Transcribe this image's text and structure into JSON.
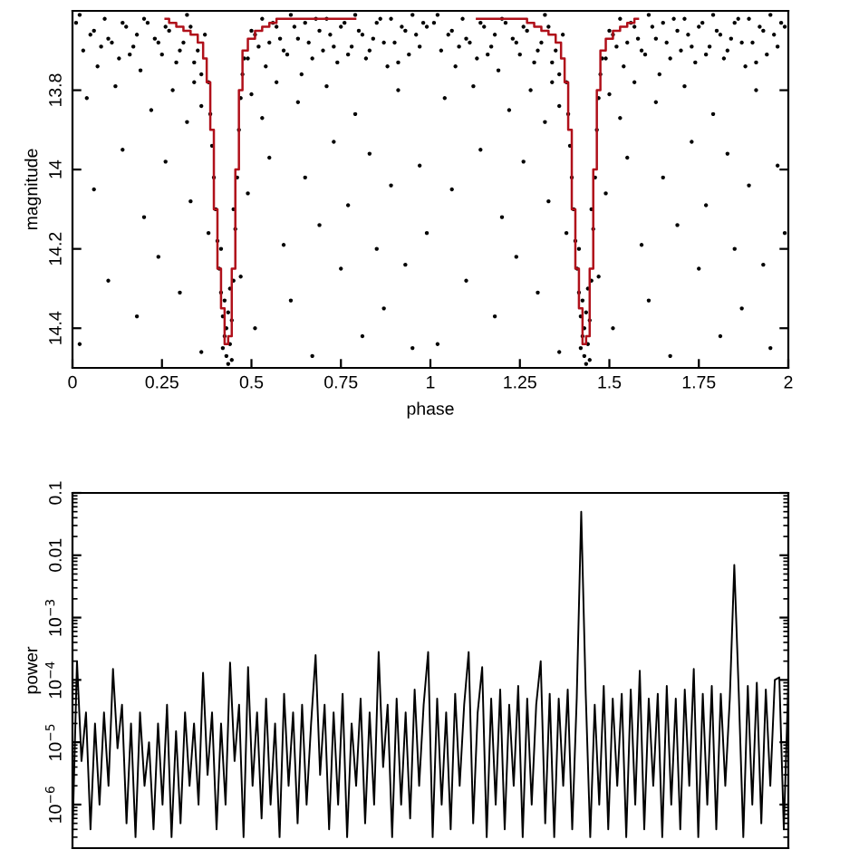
{
  "chart_data": [
    {
      "type": "scatter",
      "xlabel": "phase",
      "ylabel": "magnitude",
      "xlim": [
        0,
        2
      ],
      "ylim": [
        14.5,
        13.6
      ],
      "xticks": [
        0,
        0.25,
        0.5,
        0.75,
        1,
        1.25,
        1.5,
        1.75,
        2
      ],
      "yticks": [
        13.8,
        14,
        14.2,
        14.4
      ],
      "series": [
        {
          "type": "scatter",
          "color": "#000000",
          "marker": "circle",
          "x": [
            0.01,
            0.03,
            0.05,
            0.07,
            0.09,
            0.11,
            0.13,
            0.15,
            0.17,
            0.19,
            0.21,
            0.23,
            0.25,
            0.27,
            0.29,
            0.31,
            0.33,
            0.35,
            0.36,
            0.37,
            0.49,
            0.5,
            0.52,
            0.54,
            0.56,
            0.58,
            0.6,
            0.62,
            0.64,
            0.66,
            0.68,
            0.7,
            0.72,
            0.74,
            0.76,
            0.78,
            0.8,
            0.82,
            0.84,
            0.86,
            0.88,
            0.9,
            0.92,
            0.94,
            0.96,
            0.98,
            0.04,
            0.12,
            0.22,
            0.28,
            0.32,
            0.34,
            0.36,
            0.5,
            0.53,
            0.57,
            0.63,
            0.71,
            0.79,
            0.91,
            0.02,
            0.06,
            0.1,
            0.14,
            0.18,
            0.2,
            0.24,
            0.26,
            0.3,
            0.33,
            0.36,
            0.38,
            0.47,
            0.49,
            0.51,
            0.55,
            0.59,
            0.61,
            0.65,
            0.67,
            0.69,
            0.73,
            0.75,
            0.77,
            0.81,
            0.83,
            0.85,
            0.87,
            0.89,
            0.93,
            0.95,
            0.97,
            0.99,
            0.38,
            0.385,
            0.39,
            0.395,
            0.4,
            0.405,
            0.41,
            0.415,
            0.42,
            0.425,
            0.43,
            0.435,
            0.44,
            0.445,
            0.45,
            0.455,
            0.46,
            0.465,
            0.47,
            0.475,
            0.48,
            0.43,
            0.425,
            0.435,
            0.42,
            0.44,
            0.415,
            0.45,
            0.445,
            1.01,
            1.03,
            1.05,
            1.07,
            1.09,
            1.11,
            1.13,
            1.15,
            1.17,
            1.19,
            1.21,
            1.23,
            1.25,
            1.27,
            1.29,
            1.31,
            1.33,
            1.35,
            1.36,
            1.37,
            1.49,
            1.5,
            1.52,
            1.54,
            1.56,
            1.58,
            1.6,
            1.62,
            1.64,
            1.66,
            1.68,
            1.7,
            1.72,
            1.74,
            1.76,
            1.78,
            1.8,
            1.82,
            1.84,
            1.86,
            1.88,
            1.9,
            1.92,
            1.94,
            1.96,
            1.98,
            1.04,
            1.12,
            1.22,
            1.28,
            1.32,
            1.34,
            1.36,
            1.5,
            1.53,
            1.57,
            1.63,
            1.71,
            1.79,
            1.91,
            1.02,
            1.06,
            1.1,
            1.14,
            1.18,
            1.2,
            1.24,
            1.26,
            1.3,
            1.33,
            1.36,
            1.38,
            1.47,
            1.49,
            1.51,
            1.55,
            1.59,
            1.61,
            1.65,
            1.67,
            1.69,
            1.73,
            1.75,
            1.77,
            1.81,
            1.83,
            1.85,
            1.87,
            1.89,
            1.93,
            1.95,
            1.97,
            1.99,
            1.38,
            1.385,
            1.39,
            1.395,
            1.4,
            1.405,
            1.41,
            1.415,
            1.42,
            1.425,
            1.43,
            1.435,
            1.44,
            1.445,
            1.45,
            1.455,
            1.46,
            1.465,
            1.47,
            1.475,
            1.48,
            1.43,
            1.425,
            1.435,
            1.42,
            1.44,
            1.415,
            1.45,
            1.445,
            0.02,
            0.06,
            0.08,
            0.1,
            0.14,
            0.16,
            0.18,
            0.2,
            0.24,
            0.26,
            0.3,
            0.32,
            0.34,
            0.51,
            0.53,
            0.55,
            0.57,
            0.59,
            0.61,
            0.63,
            0.65,
            0.67,
            0.69,
            0.71,
            0.73,
            0.75,
            0.77,
            0.79,
            0.81,
            0.83,
            0.85,
            0.87,
            0.89,
            0.91,
            0.93,
            0.95,
            0.97,
            0.99,
            1.02,
            1.06,
            1.08,
            1.1,
            1.14,
            1.16,
            1.18,
            1.2,
            1.24,
            1.26,
            1.3,
            1.32,
            1.34,
            1.51,
            1.53,
            1.55,
            1.57,
            1.59,
            1.61,
            1.63,
            1.65,
            1.67,
            1.69,
            1.71,
            1.73,
            1.75,
            1.77,
            1.79,
            1.81,
            1.83,
            1.85,
            1.87,
            1.89,
            1.91,
            1.93,
            1.95,
            1.97,
            1.99
          ],
          "values": [
            13.63,
            13.7,
            13.66,
            13.74,
            13.62,
            13.68,
            13.72,
            13.64,
            13.69,
            13.75,
            13.63,
            13.67,
            13.71,
            13.65,
            13.73,
            13.68,
            13.64,
            13.7,
            13.76,
            13.66,
            13.72,
            13.65,
            13.69,
            13.74,
            13.63,
            13.67,
            13.71,
            13.64,
            13.76,
            13.68,
            13.62,
            13.7,
            13.66,
            13.73,
            13.63,
            13.69,
            13.65,
            13.72,
            13.67,
            13.62,
            13.74,
            13.68,
            13.64,
            13.71,
            13.66,
            13.63,
            13.82,
            13.79,
            13.85,
            13.8,
            13.88,
            13.78,
            13.84,
            13.81,
            13.87,
            13.78,
            13.83,
            13.79,
            13.86,
            13.8,
            14.44,
            14.05,
            14.28,
            13.95,
            14.37,
            14.12,
            14.22,
            13.98,
            14.31,
            14.08,
            14.46,
            14.16,
            14.27,
            14.06,
            14.4,
            13.97,
            14.19,
            14.33,
            14.02,
            14.47,
            14.14,
            13.93,
            14.25,
            14.09,
            14.42,
            13.96,
            14.2,
            14.35,
            14.04,
            14.24,
            14.45,
            13.99,
            14.16,
            13.78,
            13.86,
            13.94,
            14.02,
            14.1,
            14.18,
            14.25,
            14.31,
            14.37,
            14.42,
            14.47,
            14.49,
            14.44,
            14.38,
            14.28,
            14.15,
            14.02,
            13.9,
            13.82,
            13.76,
            13.72,
            14.4,
            14.33,
            14.36,
            14.45,
            14.3,
            14.2,
            14.1,
            14.48,
            13.63,
            13.7,
            13.66,
            13.74,
            13.62,
            13.68,
            13.72,
            13.64,
            13.69,
            13.75,
            13.63,
            13.67,
            13.71,
            13.65,
            13.73,
            13.68,
            13.64,
            13.7,
            13.76,
            13.66,
            13.72,
            13.65,
            13.69,
            13.74,
            13.63,
            13.67,
            13.71,
            13.64,
            13.76,
            13.68,
            13.62,
            13.7,
            13.66,
            13.73,
            13.63,
            13.69,
            13.65,
            13.72,
            13.67,
            13.62,
            13.74,
            13.68,
            13.64,
            13.71,
            13.66,
            13.63,
            13.82,
            13.79,
            13.85,
            13.8,
            13.88,
            13.78,
            13.84,
            13.81,
            13.87,
            13.78,
            13.83,
            13.79,
            13.86,
            13.8,
            14.44,
            14.05,
            14.28,
            13.95,
            14.37,
            14.12,
            14.22,
            13.98,
            14.31,
            14.08,
            14.46,
            14.16,
            14.27,
            14.06,
            14.4,
            13.97,
            14.19,
            14.33,
            14.02,
            14.47,
            14.14,
            13.93,
            14.25,
            14.09,
            14.42,
            13.96,
            14.2,
            14.35,
            14.04,
            14.24,
            14.45,
            13.99,
            14.16,
            13.78,
            13.86,
            13.94,
            14.02,
            14.1,
            14.18,
            14.25,
            14.31,
            14.37,
            14.42,
            14.47,
            14.49,
            14.44,
            14.38,
            14.28,
            14.15,
            14.02,
            13.9,
            13.82,
            13.76,
            13.72,
            14.4,
            14.33,
            14.36,
            14.45,
            14.3,
            14.2,
            14.1,
            14.48,
            13.61,
            13.65,
            13.69,
            13.67,
            13.63,
            13.71,
            13.66,
            13.62,
            13.68,
            13.64,
            13.7,
            13.61,
            13.73,
            13.66,
            13.62,
            13.68,
            13.64,
            13.7,
            13.61,
            13.67,
            13.63,
            13.72,
            13.65,
            13.62,
            13.69,
            13.64,
            13.71,
            13.61,
            13.66,
            13.7,
            13.63,
            13.68,
            13.62,
            13.73,
            13.65,
            13.61,
            13.69,
            13.64,
            13.61,
            13.65,
            13.69,
            13.67,
            13.63,
            13.71,
            13.66,
            13.62,
            13.68,
            13.64,
            13.7,
            13.61,
            13.73,
            13.66,
            13.62,
            13.68,
            13.64,
            13.7,
            13.61,
            13.67,
            13.63,
            13.72,
            13.65,
            13.62,
            13.69,
            13.64,
            13.71,
            13.61,
            13.66,
            13.7,
            13.63,
            13.68,
            13.62,
            13.73,
            13.65,
            13.61,
            13.69,
            13.64
          ]
        },
        {
          "type": "step",
          "color": "#b0101a",
          "x": [
            0.26,
            0.28,
            0.3,
            0.32,
            0.34,
            0.36,
            0.37,
            0.38,
            0.39,
            0.4,
            0.41,
            0.42,
            0.43,
            0.44,
            0.45,
            0.46,
            0.47,
            0.48,
            0.5,
            0.52,
            0.54,
            0.56,
            0.58,
            1.0,
            1.26,
            1.28,
            1.3,
            1.32,
            1.34,
            1.36,
            1.37,
            1.38,
            1.39,
            1.4,
            1.41,
            1.42,
            1.43,
            1.44,
            1.45,
            1.46,
            1.47,
            1.48,
            1.5,
            1.52,
            1.54,
            1.56,
            1.58
          ],
          "values": [
            13.62,
            13.63,
            13.64,
            13.65,
            13.66,
            13.68,
            13.72,
            13.78,
            13.9,
            14.1,
            14.25,
            14.35,
            14.44,
            14.42,
            14.25,
            14.0,
            13.8,
            13.7,
            13.67,
            13.65,
            13.64,
            13.63,
            13.62,
            null,
            13.62,
            13.63,
            13.64,
            13.65,
            13.66,
            13.68,
            13.72,
            13.78,
            13.9,
            14.1,
            14.25,
            14.35,
            14.44,
            14.42,
            14.25,
            14.0,
            13.8,
            13.7,
            13.67,
            13.65,
            13.64,
            13.63,
            13.62
          ]
        }
      ]
    },
    {
      "type": "line",
      "ylabel": "power",
      "log": "y",
      "ylim": [
        2e-07,
        0.1
      ],
      "tick_labels": "y",
      "yticks": [
        {
          "value": 1e-06,
          "label": "10$^{−6}$"
        },
        {
          "value": 1e-05,
          "label": "10$^{−5}$"
        },
        {
          "value": 0.0001,
          "label": "10$^{−4}$"
        },
        {
          "value": 0.001,
          "label": "10$^{−3}$"
        },
        0.01,
        0.1
      ],
      "categories": [
        null,
        null,
        null,
        null,
        null,
        null,
        null,
        null,
        null,
        null,
        null,
        null,
        null,
        null,
        null,
        null,
        null,
        null,
        null,
        null,
        null,
        null,
        null,
        null,
        null,
        null,
        null,
        null,
        null,
        null,
        null,
        null,
        null,
        null,
        null,
        null,
        null,
        null,
        null,
        null,
        null,
        null,
        null,
        null,
        null,
        null,
        null,
        null,
        null,
        null,
        null,
        null,
        null,
        null,
        null,
        null,
        null,
        null,
        null,
        null,
        null,
        null,
        null,
        null,
        null,
        null,
        null,
        null,
        null,
        null,
        null,
        null,
        null,
        null,
        null,
        null,
        null,
        null,
        null,
        null,
        null,
        null,
        null,
        null,
        null,
        null,
        null,
        null,
        null,
        null,
        null,
        null,
        null,
        null,
        null,
        null,
        null,
        null,
        null,
        null,
        null,
        null,
        null,
        null,
        null,
        null,
        null,
        null,
        null,
        null,
        null,
        null,
        null,
        null,
        null,
        null,
        null,
        null,
        null,
        null,
        null,
        null,
        null,
        null,
        null,
        null,
        null,
        null,
        null,
        null,
        null,
        null,
        null,
        null,
        null,
        null,
        null,
        null,
        null,
        null,
        null,
        null,
        null,
        null,
        null,
        null,
        null,
        null,
        null,
        null,
        null,
        null,
        null,
        null,
        null,
        null,
        null,
        null,
        null,
        null
      ],
      "series": [
        {
          "color": "#000000",
          "values": [
            3e-07,
            0.0002,
            5e-06,
            3e-05,
            4e-07,
            2e-05,
            1e-06,
            3e-05,
            2e-06,
            0.00015,
            8e-06,
            4e-05,
            5e-07,
            2e-05,
            3e-07,
            3e-05,
            2e-06,
            1e-05,
            4e-07,
            2e-05,
            1e-06,
            4e-05,
            3e-07,
            1.5e-05,
            5e-07,
            3e-05,
            2e-06,
            2e-05,
            1e-06,
            0.00013,
            3e-06,
            3e-05,
            4e-07,
            2e-05,
            1e-06,
            0.00019,
            5e-06,
            4e-05,
            3e-07,
            0.00016,
            2e-06,
            3e-05,
            6e-07,
            5e-05,
            1e-06,
            2e-05,
            3e-07,
            6e-05,
            2e-06,
            3e-05,
            5e-07,
            4e-05,
            1e-06,
            2e-05,
            0.00025,
            3e-06,
            4e-05,
            4e-07,
            3e-05,
            1e-06,
            6e-05,
            3e-07,
            2e-05,
            2e-06,
            5e-05,
            5e-07,
            3e-05,
            1e-06,
            0.00028,
            4e-06,
            4e-05,
            3e-07,
            5e-05,
            1e-06,
            3e-05,
            6e-07,
            7e-05,
            2e-06,
            4e-05,
            0.00028,
            3e-07,
            5e-05,
            1e-06,
            3e-05,
            4e-07,
            6e-05,
            2e-06,
            4e-05,
            0.00028,
            5e-07,
            3e-05,
            0.00016,
            3e-07,
            5e-05,
            1e-06,
            7e-05,
            4e-07,
            4e-05,
            2e-06,
            8e-05,
            3e-07,
            5e-05,
            1e-06,
            4e-05,
            0.0002,
            5e-07,
            6e-05,
            3e-07,
            5e-05,
            2e-06,
            7e-05,
            4e-07,
            5e-05,
            0.05,
            6e-05,
            3e-07,
            4e-05,
            1e-06,
            8e-05,
            4e-07,
            5e-05,
            2e-06,
            6e-05,
            3e-07,
            7e-05,
            1e-06,
            0.00014,
            4e-07,
            5e-05,
            2e-06,
            6e-05,
            3e-07,
            8e-05,
            1e-06,
            5e-05,
            4e-07,
            7e-05,
            2e-06,
            0.00015,
            3e-07,
            6e-05,
            1e-06,
            8e-05,
            4e-07,
            6e-05,
            2e-06,
            5e-05,
            0.007,
            6e-05,
            3e-07,
            8e-05,
            1e-06,
            9e-05,
            5e-07,
            7e-05,
            2e-06,
            0.0001,
            0.00011,
            4e-07,
            9e-05
          ]
        }
      ]
    }
  ]
}
